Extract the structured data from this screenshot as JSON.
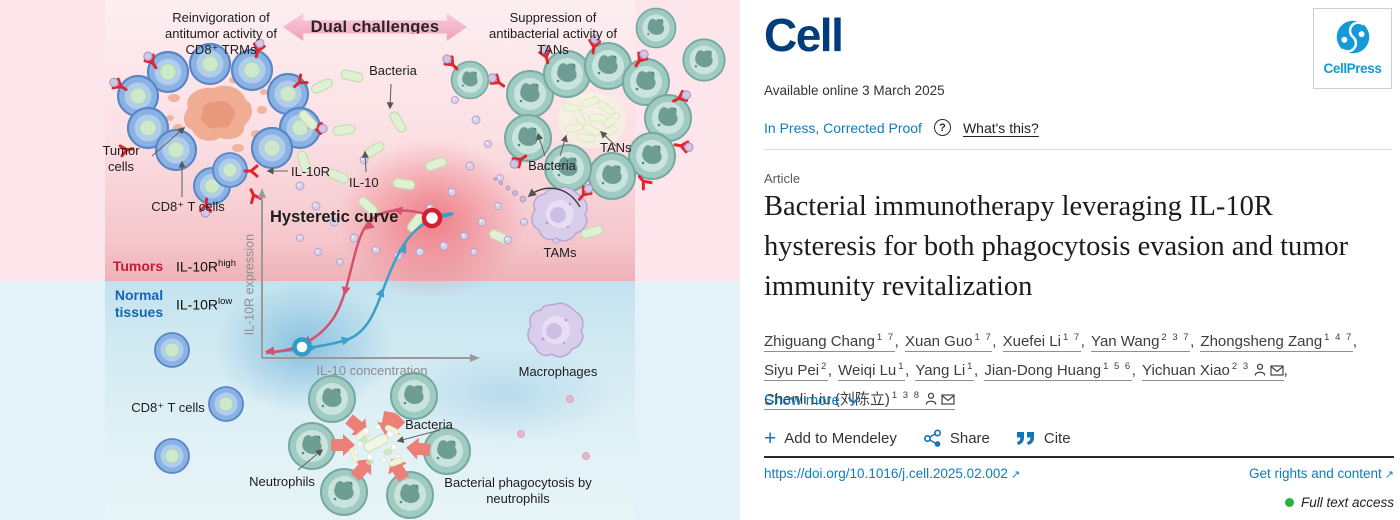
{
  "figure": {
    "labels": {
      "reinvigoration": "Reinvigoration of antitumor activity of CD8⁺ TRMs",
      "dual_challenges": "Dual challenges",
      "suppression": "Suppression of antibacterial activity of TANs",
      "bacteria": "Bacteria",
      "tumor_cells": "Tumor cells",
      "cd8_t_cells": "CD8⁺ T cells",
      "il10r": "IL-10R",
      "il10": "IL-10",
      "tans": "TANs",
      "tams": "TAMs",
      "hysteretic_curve": "Hysteretic curve",
      "tumors": "Tumors",
      "normal_tissues": "Normal tissues",
      "receptor_base": "IL-10R",
      "receptor_high_sup": "high",
      "receptor_low_sup": "low",
      "ylabel": "IL-10R expression",
      "xlabel": "IL-10 concentration",
      "macrophages": "Macrophages",
      "neutrophils": "Neutrophils",
      "phagocytosis": "Bacterial phagocytosis by neutrophils"
    },
    "colors": {
      "tumor_zone_red": "#eeb2b8",
      "normal_zone_blue": "#c2e2ee",
      "curve_red": "#d6516b",
      "curve_blue": "#3ba0c8"
    }
  },
  "header": {
    "journal": "Cell",
    "publisher": "CellPress",
    "available": "Available online 3 March 2025",
    "in_press": "In Press, Corrected Proof",
    "help": "?",
    "whats_this": "What's this?"
  },
  "article": {
    "type_label": "Article",
    "title": "Bacterial immunotherapy leveraging IL-10R hysteresis for both phagocytosis evasion and tumor immunity revitalization"
  },
  "authors": [
    {
      "name": "Zhiguang Chang",
      "sup": "1 7",
      "profile": false,
      "email": false
    },
    {
      "name": "Xuan Guo",
      "sup": "1 7",
      "profile": false,
      "email": false
    },
    {
      "name": "Xuefei Li",
      "sup": "1 7",
      "profile": false,
      "email": false
    },
    {
      "name": "Yan Wang",
      "sup": "2 3 7",
      "profile": false,
      "email": false
    },
    {
      "name": "Zhongsheng Zang",
      "sup": "1 4 7",
      "profile": false,
      "email": false
    },
    {
      "name": "Siyu Pei",
      "sup": "2",
      "profile": false,
      "email": false
    },
    {
      "name": "Weiqi Lu",
      "sup": "1",
      "profile": false,
      "email": false
    },
    {
      "name": "Yang Li",
      "sup": "1",
      "profile": false,
      "email": false
    },
    {
      "name": "Jian-Dong Huang",
      "sup": "1 5 6",
      "profile": false,
      "email": false
    },
    {
      "name": "Yichuan Xiao",
      "sup": "2 3",
      "profile": true,
      "email": true
    },
    {
      "name": "Chenli Liu (刘陈立)",
      "sup": "1 3 8",
      "profile": true,
      "email": true
    }
  ],
  "actions": {
    "show_more": "Show more",
    "add_mendeley": "Add to Mendeley",
    "share": "Share",
    "cite": "Cite"
  },
  "footer": {
    "doi": "https://doi.org/10.1016/j.cell.2025.02.002",
    "rights": "Get rights and content",
    "access": "Full text access",
    "ext_arrow": "↗"
  }
}
